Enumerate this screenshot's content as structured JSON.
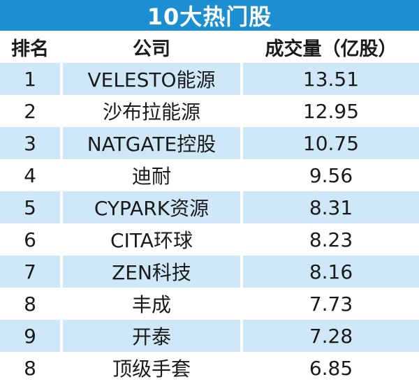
{
  "title": "10大热门股",
  "headers": {
    "rank": "排名",
    "company": "公司",
    "volume": "成交量（亿股）"
  },
  "rows": [
    {
      "rank": "1",
      "company": "VELESTO能源",
      "volume": "13.51"
    },
    {
      "rank": "2",
      "company": "沙布拉能源",
      "volume": "12.95"
    },
    {
      "rank": "3",
      "company": "NATGATE控股",
      "volume": "10.75"
    },
    {
      "rank": "4",
      "company": "迪耐",
      "volume": "9.56"
    },
    {
      "rank": "5",
      "company": "CYPARK资源",
      "volume": "8.31"
    },
    {
      "rank": "6",
      "company": "CITA环球",
      "volume": "8.23"
    },
    {
      "rank": "7",
      "company": "ZEN科技",
      "volume": "8.16"
    },
    {
      "rank": "8",
      "company": "丰成",
      "volume": "7.73"
    },
    {
      "rank": "9",
      "company": "开泰",
      "volume": "7.28"
    },
    {
      "rank": "8",
      "company": "顶级手套",
      "volume": "6.85"
    }
  ],
  "colors": {
    "title_bg": "#1b8fd2",
    "row_shade": "#cfe8f8"
  }
}
